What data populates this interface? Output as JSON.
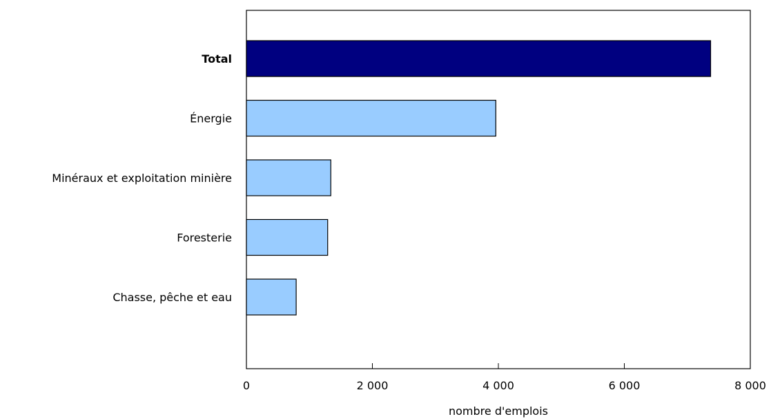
{
  "chart_data": {
    "type": "bar",
    "orientation": "horizontal",
    "categories": [
      "Total",
      "Énergie",
      "Minéraux et exploitation minière",
      "Foresterie",
      "Chasse, pêche et eau"
    ],
    "values": [
      7370,
      3960,
      1340,
      1290,
      790
    ],
    "highlight_category": "Total",
    "xlabel": "nombre d'emplois",
    "ylabel": "",
    "title": "",
    "xlim": [
      0,
      8000
    ],
    "xticks": [
      0,
      2000,
      4000,
      6000,
      8000
    ],
    "xtick_labels": [
      "0",
      "2 000",
      "4 000",
      "6 000",
      "8 000"
    ],
    "grid": false,
    "legend": "none",
    "colors": {
      "highlight": "#000080",
      "bar": "#99ccff",
      "stroke": "#000000"
    }
  }
}
